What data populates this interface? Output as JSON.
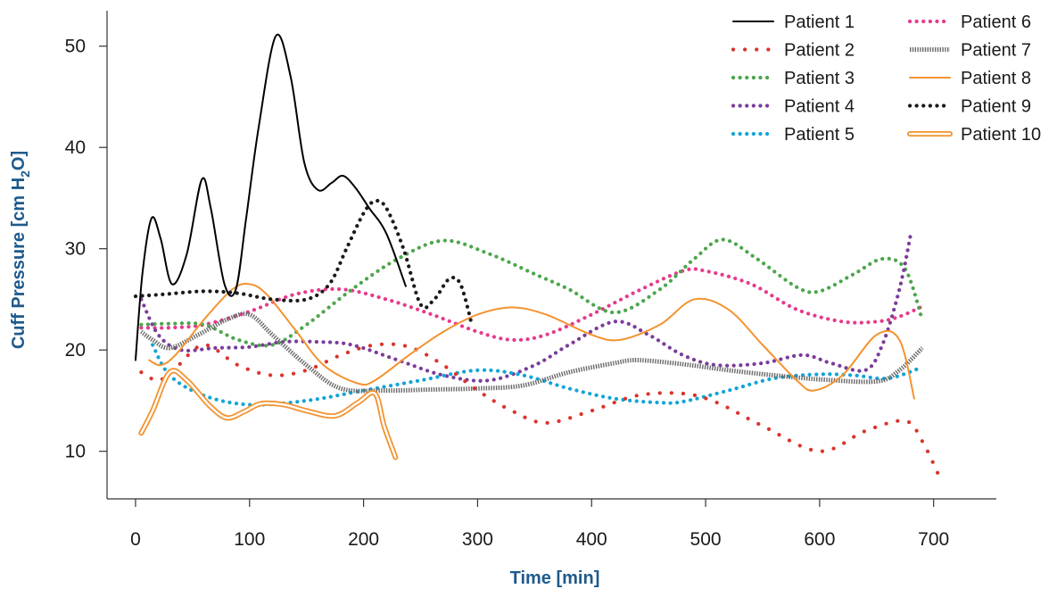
{
  "chart_data": {
    "type": "line",
    "title": "",
    "xlabel": "Time [min]",
    "ylabel": "Cuff Pressure [cm H2O]",
    "ylabel_parts": {
      "main": "Cuff Pressure [cm H",
      "sub": "2",
      "tail": "O]"
    },
    "xlim": [
      -25,
      755
    ],
    "ylim": [
      5.3,
      53.5
    ],
    "xticks": [
      0,
      100,
      200,
      300,
      400,
      500,
      600,
      700
    ],
    "yticks": [
      10,
      20,
      30,
      40,
      50
    ],
    "grid": false,
    "legend_position": "top-right",
    "series": [
      {
        "name": "Patient 1",
        "color": "#000000",
        "style": "solid",
        "x": [
          0,
          6,
          14,
          22,
          32,
          45,
          58,
          66,
          78,
          88,
          97,
          108,
          123,
          136,
          148,
          160,
          172,
          182,
          193,
          205,
          220,
          237
        ],
        "y": [
          19.0,
          27.5,
          33.0,
          31.0,
          26.5,
          29.5,
          36.8,
          34.0,
          26.5,
          26.0,
          33.0,
          42.0,
          51.0,
          47.0,
          38.5,
          35.8,
          36.5,
          37.2,
          36.0,
          34.0,
          31.5,
          26.3
        ]
      },
      {
        "name": "Patient 2",
        "color": "#d9342b",
        "style": "dotted-sparse",
        "x": [
          5,
          20,
          35,
          60,
          90,
          120,
          150,
          180,
          210,
          240,
          270,
          300,
          330,
          360,
          400,
          440,
          480,
          510,
          550,
          600,
          640,
          675,
          690,
          705
        ],
        "y": [
          17.8,
          17.0,
          18.2,
          20.5,
          18.5,
          17.5,
          18.0,
          19.5,
          20.5,
          20.3,
          18.5,
          16.0,
          14.0,
          12.8,
          14.0,
          15.5,
          15.7,
          14.8,
          12.5,
          10.0,
          12.0,
          13.0,
          11.0,
          7.5
        ]
      },
      {
        "name": "Patient 3",
        "color": "#4ca64c",
        "style": "dotted",
        "x": [
          5,
          30,
          60,
          90,
          120,
          150,
          190,
          230,
          270,
          310,
          350,
          380,
          420,
          460,
          490,
          515,
          545,
          580,
          600,
          630,
          655,
          675,
          690
        ],
        "y": [
          22.5,
          22.6,
          22.5,
          21.0,
          20.5,
          22.5,
          26.0,
          29.0,
          30.8,
          29.5,
          27.5,
          26.0,
          23.7,
          26.0,
          29.0,
          30.9,
          29.0,
          26.2,
          25.8,
          27.5,
          29.0,
          28.0,
          23.0
        ]
      },
      {
        "name": "Patient 4",
        "color": "#7b3c99",
        "style": "dotted",
        "x": [
          5,
          20,
          40,
          70,
          100,
          130,
          160,
          190,
          230,
          270,
          310,
          350,
          380,
          420,
          450,
          480,
          510,
          550,
          585,
          610,
          640,
          655,
          670,
          680
        ],
        "y": [
          25.0,
          21.5,
          20.0,
          20.2,
          20.3,
          20.8,
          20.8,
          20.5,
          19.0,
          17.5,
          17.0,
          18.5,
          20.5,
          22.8,
          21.5,
          19.5,
          18.5,
          18.7,
          19.5,
          18.7,
          18.0,
          20.5,
          26.0,
          31.5
        ]
      },
      {
        "name": "Patient 5",
        "color": "#12a5d6",
        "style": "dotted",
        "x": [
          15,
          30,
          60,
          100,
          150,
          200,
          250,
          300,
          340,
          380,
          420,
          460,
          480,
          520,
          560,
          600,
          630,
          660,
          690
        ],
        "y": [
          20.5,
          17.5,
          15.5,
          14.6,
          15.0,
          16.0,
          17.0,
          18.0,
          17.5,
          16.2,
          15.2,
          14.8,
          14.9,
          16.0,
          17.2,
          17.6,
          17.5,
          17.2,
          18.3
        ]
      },
      {
        "name": "Patient 6",
        "color": "#e63b8c",
        "style": "dotted",
        "x": [
          5,
          30,
          60,
          100,
          140,
          180,
          220,
          260,
          300,
          330,
          360,
          400,
          440,
          480,
          500,
          540,
          580,
          620,
          650,
          670,
          690
        ],
        "y": [
          22.2,
          22.2,
          22.5,
          23.8,
          25.5,
          26.0,
          25.0,
          23.5,
          21.8,
          21.0,
          21.5,
          23.5,
          25.8,
          27.8,
          27.8,
          26.5,
          24.0,
          22.8,
          22.8,
          23.3,
          24.3
        ]
      },
      {
        "name": "Patient 7",
        "color": "#8a8a8a",
        "style": "hatched",
        "x": [
          5,
          15,
          30,
          55,
          80,
          100,
          120,
          150,
          180,
          220,
          260,
          300,
          340,
          380,
          420,
          440,
          480,
          520,
          560,
          600,
          650,
          670,
          690
        ],
        "y": [
          21.8,
          21.0,
          20.2,
          21.5,
          23.0,
          23.5,
          21.5,
          18.5,
          16.2,
          16.0,
          16.1,
          16.2,
          16.5,
          17.8,
          18.7,
          19.0,
          18.6,
          18.0,
          17.5,
          17.1,
          16.9,
          18.0,
          20.2
        ]
      },
      {
        "name": "Patient 8",
        "color": "#f39330",
        "style": "solid",
        "x": [
          12,
          22,
          35,
          60,
          85,
          100,
          115,
          140,
          165,
          195,
          210,
          240,
          270,
          300,
          330,
          360,
          400,
          425,
          460,
          490,
          520,
          550,
          580,
          595,
          620,
          650,
          670,
          683
        ],
        "y": [
          19.0,
          18.5,
          19.5,
          23.0,
          26.0,
          26.5,
          25.5,
          22.0,
          18.5,
          16.7,
          17.0,
          19.5,
          21.8,
          23.5,
          24.2,
          23.5,
          21.5,
          21.0,
          22.5,
          25.0,
          24.0,
          20.5,
          17.0,
          16.0,
          17.5,
          21.5,
          21.0,
          15.2
        ]
      },
      {
        "name": "Patient 9",
        "color": "#1a1a1a",
        "style": "dotted",
        "x": [
          0,
          25,
          60,
          90,
          120,
          150,
          170,
          185,
          200,
          210,
          220,
          235,
          250,
          262,
          275,
          285,
          295
        ],
        "y": [
          25.3,
          25.5,
          25.8,
          25.6,
          25.0,
          25.0,
          26.5,
          30.0,
          33.5,
          34.7,
          34.0,
          30.0,
          24.5,
          25.0,
          27.0,
          26.5,
          22.5
        ]
      },
      {
        "name": "Patient 10",
        "color": "#f39330",
        "style": "double",
        "x": [
          5,
          15,
          30,
          45,
          65,
          80,
          95,
          110,
          130,
          150,
          175,
          195,
          210,
          218,
          228
        ],
        "y": [
          11.8,
          14.0,
          17.8,
          17.0,
          14.5,
          13.3,
          13.9,
          14.7,
          14.6,
          14.0,
          13.5,
          14.8,
          15.7,
          12.5,
          9.4
        ]
      }
    ]
  }
}
